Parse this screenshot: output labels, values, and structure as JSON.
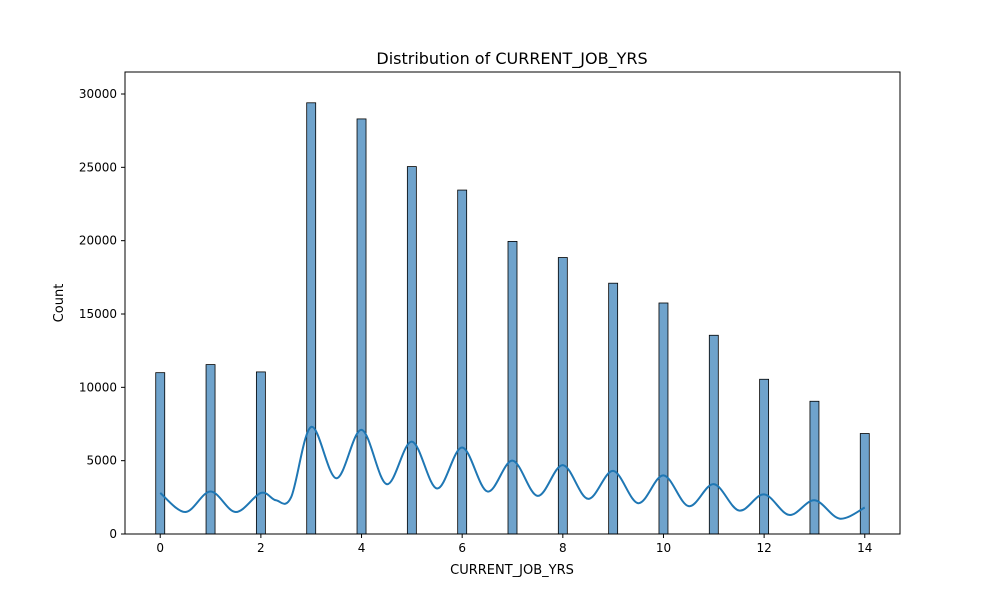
{
  "chart_data": {
    "type": "bar",
    "title": "Distribution of CURRENT_JOB_YRS",
    "xlabel": "CURRENT_JOB_YRS",
    "ylabel": "Count",
    "xlim": [
      -0.7,
      14.7
    ],
    "ylim": [
      0,
      31500
    ],
    "x_ticks": [
      0,
      2,
      4,
      6,
      8,
      10,
      12,
      14
    ],
    "y_ticks": [
      0,
      5000,
      10000,
      15000,
      20000,
      25000,
      30000
    ],
    "grid": false,
    "bar_color": "#6fa3cc",
    "bar_edge_color": "#000000",
    "kde_color": "#1f77b4",
    "categories": [
      0,
      1,
      2,
      3,
      4,
      5,
      6,
      7,
      8,
      9,
      10,
      11,
      12,
      13,
      14
    ],
    "values": [
      11000,
      11550,
      11050,
      29400,
      28300,
      25050,
      23450,
      19950,
      18850,
      17100,
      15750,
      13550,
      10550,
      9050,
      6850
    ],
    "kde": {
      "x": [
        0,
        0.5,
        1,
        1.5,
        2,
        2.3,
        2.6,
        3,
        3.5,
        4,
        4.5,
        5,
        5.5,
        6,
        6.5,
        7,
        7.5,
        8,
        8.5,
        9,
        9.5,
        10,
        10.5,
        11,
        11.5,
        12,
        12.5,
        13,
        13.5,
        14
      ],
      "y": [
        2800,
        1500,
        2900,
        1500,
        2800,
        2300,
        2500,
        7300,
        3800,
        7100,
        3400,
        6300,
        3100,
        5900,
        2900,
        5000,
        2600,
        4700,
        2400,
        4300,
        2100,
        4000,
        1900,
        3400,
        1600,
        2700,
        1300,
        2300,
        1050,
        1800
      ]
    }
  }
}
